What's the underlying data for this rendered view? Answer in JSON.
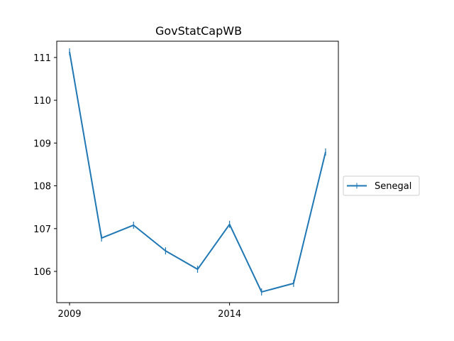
{
  "chart_data": {
    "type": "line",
    "title": "GovStatCapWB",
    "xlabel": "",
    "ylabel": "",
    "x": [
      2009,
      2010,
      2011,
      2012,
      2013,
      2014,
      2015,
      2016,
      2017
    ],
    "xticks": [
      2009,
      2014
    ],
    "yticks": [
      106,
      107,
      108,
      109,
      110,
      111
    ],
    "xlim": [
      2008.6,
      2017.4
    ],
    "ylim": [
      105.27,
      111.38
    ],
    "grid": false,
    "legend_position": "right",
    "series": [
      {
        "name": "Senegal",
        "color": "#1f77b4",
        "marker": "vertical-tick",
        "values": [
          111.13,
          106.78,
          107.08,
          106.48,
          106.05,
          107.1,
          105.52,
          105.72,
          108.79
        ]
      }
    ]
  }
}
